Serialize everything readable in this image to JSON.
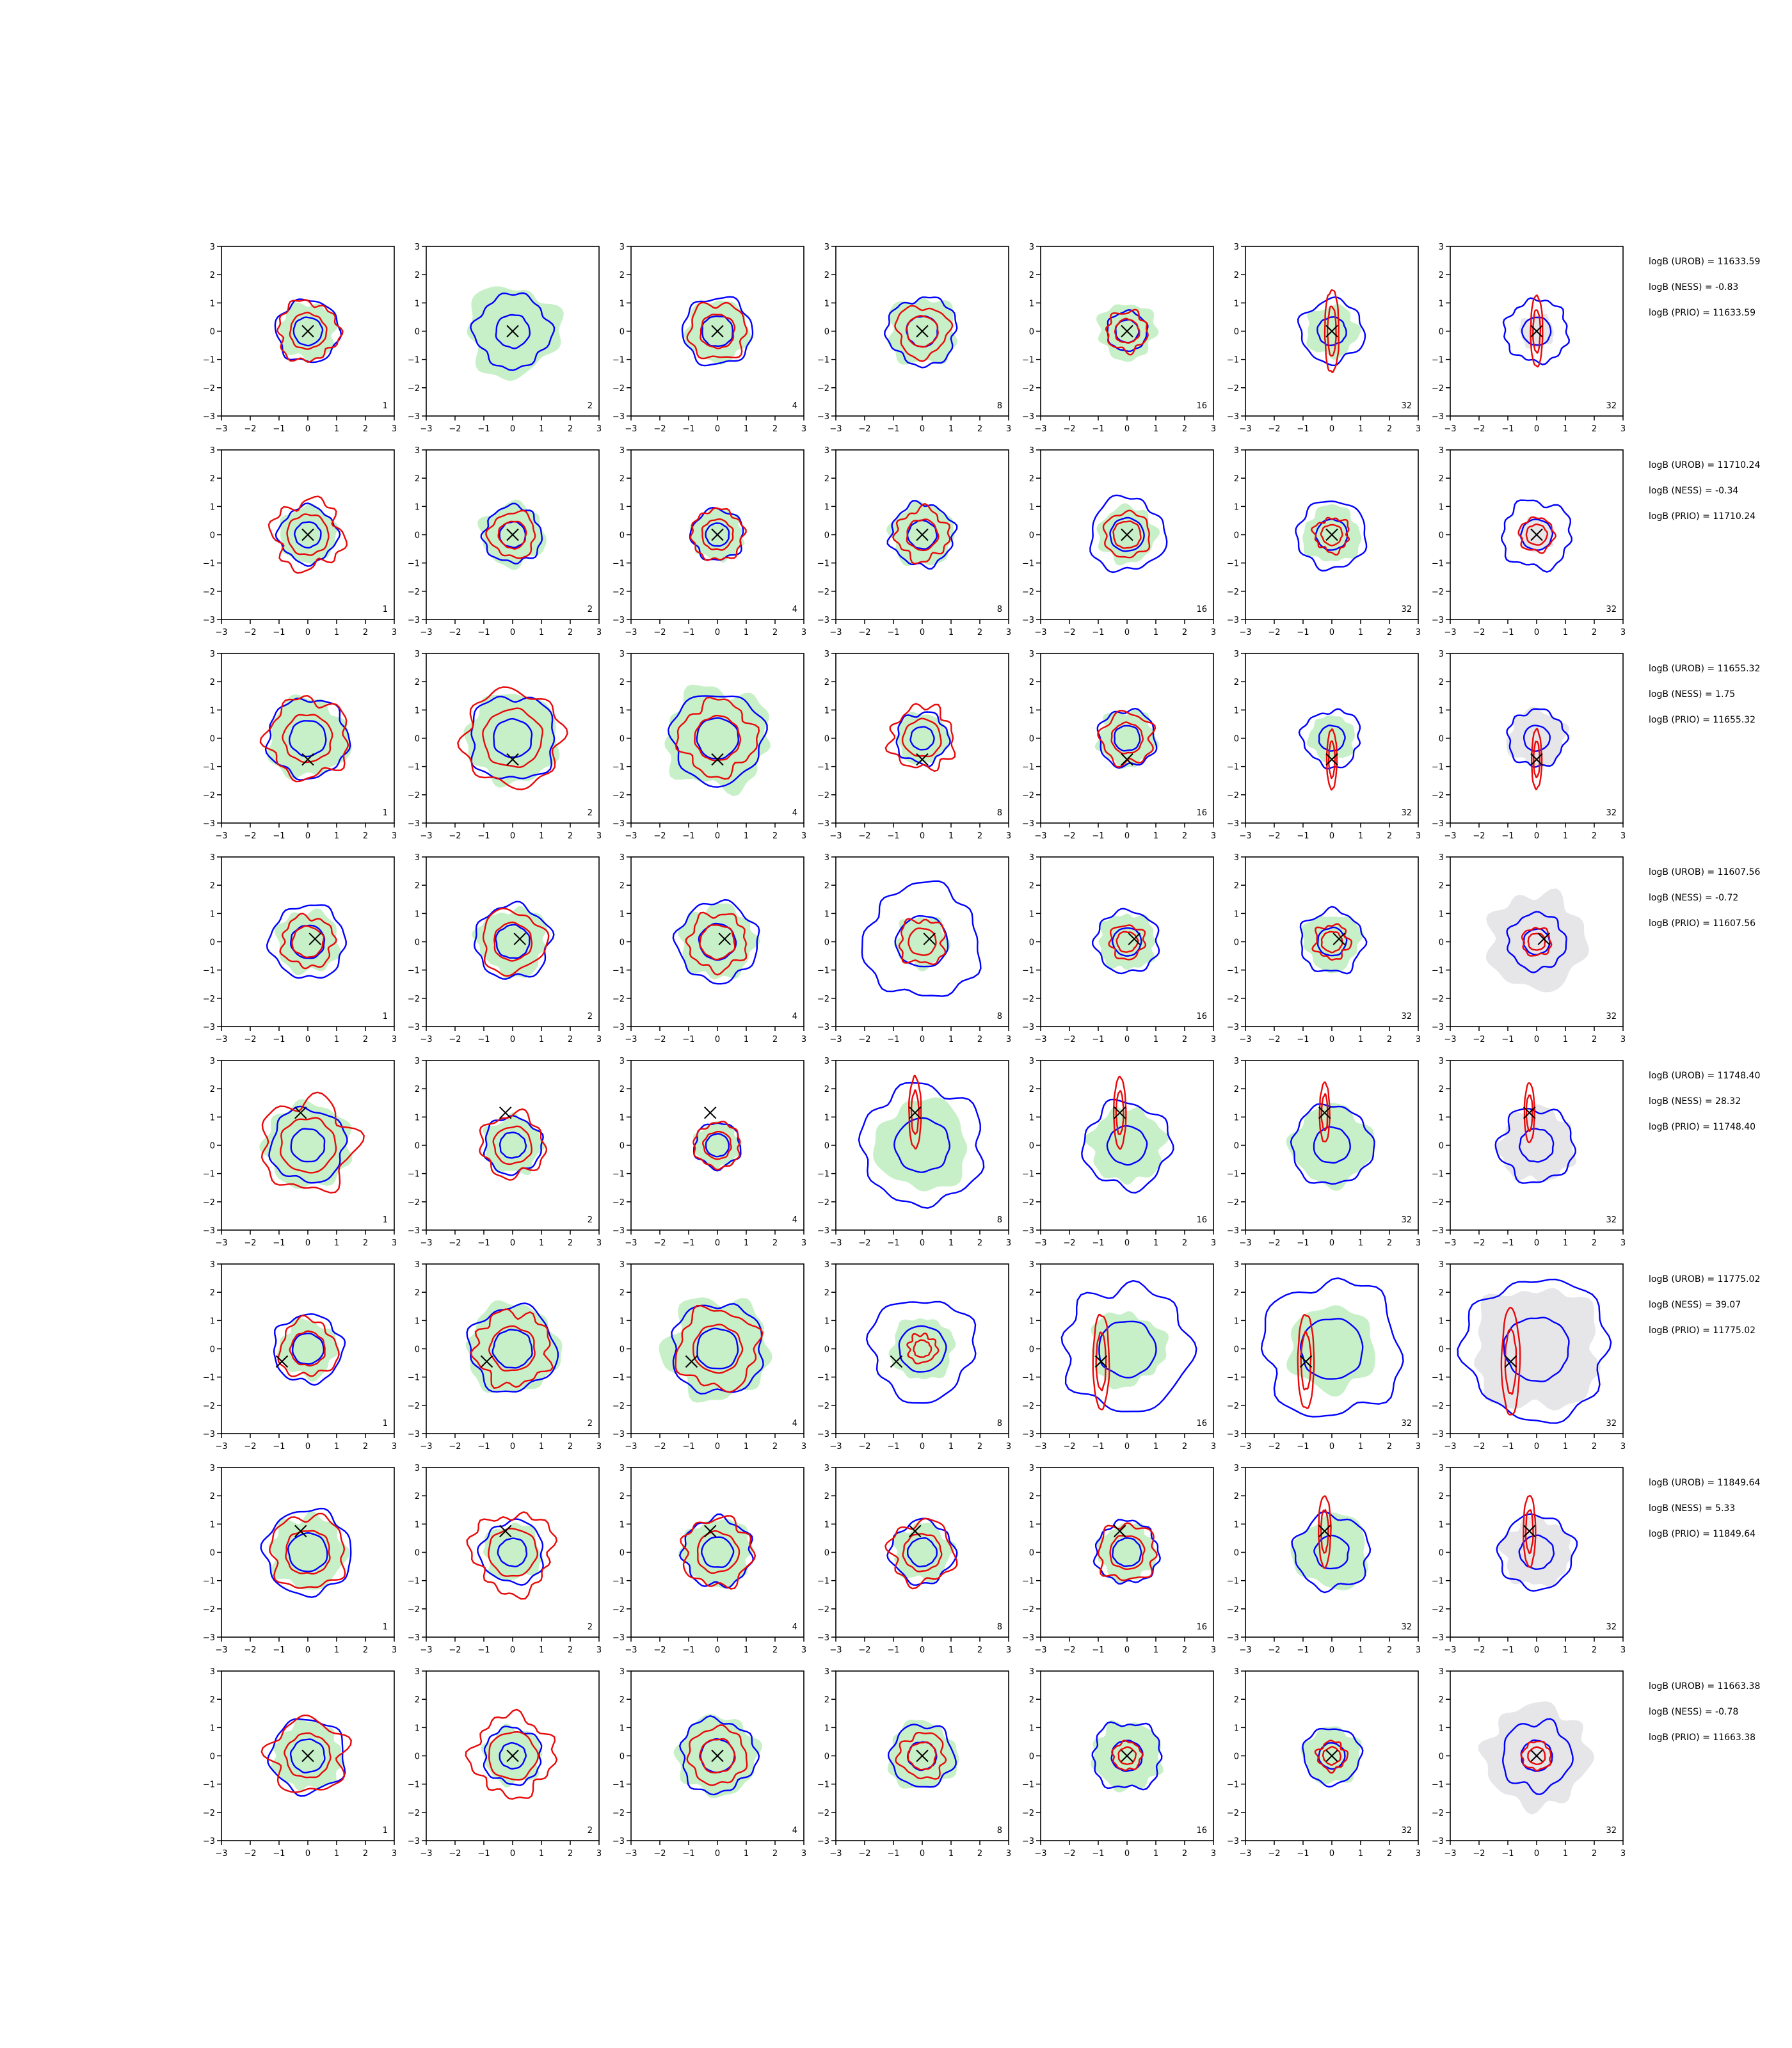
{
  "chart_data": {
    "type": "contour-grid",
    "xlim": [
      -3,
      3
    ],
    "ylim": [
      -3,
      3
    ],
    "ticks": [
      "−3",
      "−2",
      "−1",
      "0",
      "1",
      "2",
      "3"
    ],
    "tick_values": [
      -3,
      -2,
      -1,
      0,
      1,
      2,
      3
    ],
    "column_labels": [
      "1",
      "2",
      "4",
      "8",
      "16",
      "32",
      "32"
    ],
    "colors": {
      "filled_density": "#c8f0c8",
      "filled_density_last_column": "#e6e6e9",
      "contour_a": "#0000ff",
      "contour_b": "#e8090a",
      "marker": "#000000"
    },
    "rows": [
      {
        "marker": [
          0,
          0
        ],
        "labels": [
          "logB (UROB) = 11633.59",
          "logB (NESS) = -0.83",
          "logB (PRIO) = 11633.59"
        ]
      },
      {
        "marker": [
          0,
          0
        ],
        "labels": [
          "logB (UROB) = 11710.24",
          "logB (NESS) = -0.34",
          "logB (PRIO) = 11710.24"
        ]
      },
      {
        "marker": [
          0,
          -0.75
        ],
        "labels": [
          "logB (UROB) = 11655.32",
          "logB (NESS) = 1.75",
          "logB (PRIO) = 11655.32"
        ]
      },
      {
        "marker": [
          0.25,
          0.1
        ],
        "labels": [
          "logB (UROB) = 11607.56",
          "logB (NESS) = -0.72",
          "logB (PRIO) = 11607.56"
        ]
      },
      {
        "marker": [
          -0.25,
          1.15
        ],
        "labels": [
          "logB (UROB) = 11748.40",
          "logB (NESS) = 28.32",
          "logB (PRIO) = 11748.40"
        ]
      },
      {
        "marker": [
          -0.9,
          -0.45
        ],
        "labels": [
          "logB (UROB) = 11775.02",
          "logB (NESS) = 39.07",
          "logB (PRIO) = 11775.02"
        ]
      },
      {
        "marker": [
          -0.25,
          0.75
        ],
        "labels": [
          "logB (UROB) = 11849.64",
          "logB (NESS) = 5.33",
          "logB (PRIO) = 11849.64"
        ]
      },
      {
        "marker": [
          0,
          0
        ],
        "labels": [
          "logB (UROB) = 11663.38",
          "logB (NESS) = -0.78",
          "logB (PRIO) = 11663.38"
        ]
      }
    ]
  }
}
